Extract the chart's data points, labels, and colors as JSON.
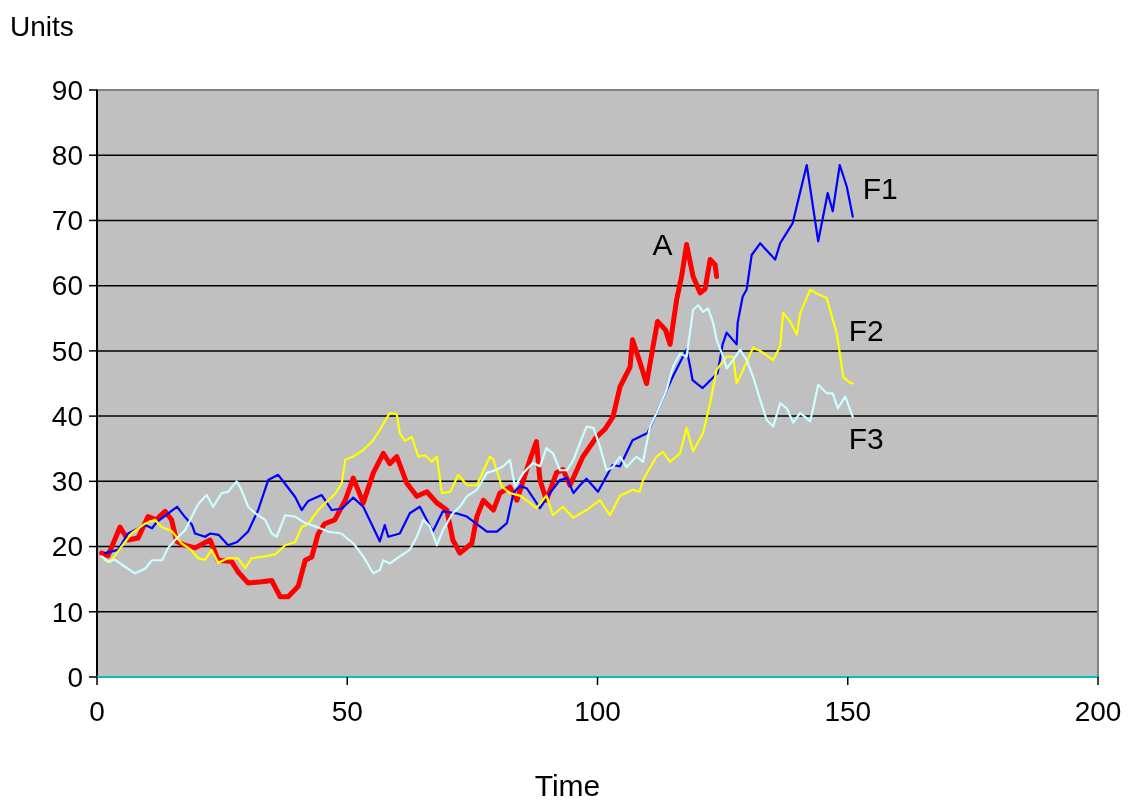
{
  "chart_data": {
    "type": "line",
    "xlabel": "Time",
    "ylabel": "Units",
    "xlim": [
      0,
      200
    ],
    "xticks": [
      0,
      50,
      100,
      150,
      200
    ],
    "ylim": [
      0,
      90
    ],
    "yticks": [
      0,
      10,
      20,
      30,
      40,
      50,
      60,
      70,
      80,
      90
    ],
    "grid": "y",
    "line_style": "solid",
    "marker": "none",
    "series": [
      {
        "name": "A",
        "color": "#ff0000",
        "x": [
          0.9,
          2.2,
          4.6,
          6.2,
          8.2,
          10.2,
          11.8,
          13.6,
          14.9,
          15.9,
          17.5,
          19.6,
          22.6,
          24.2,
          26.9,
          28.2,
          30.2,
          32.9,
          34.9,
          36.6,
          38.2,
          40.2,
          41.6,
          42.9,
          44.2,
          45.5,
          47.5,
          49.6,
          51.2,
          53.2,
          55.2,
          57.2,
          58.5,
          59.9,
          61.9,
          63.9,
          65.9,
          67.9,
          69.9,
          71.1,
          72.5,
          74.9,
          75.9,
          77.2,
          79.2,
          80.5,
          82.5,
          83.9,
          86.5,
          87.8,
          88.5,
          89.8,
          91.8,
          93.1,
          94.5,
          97.1,
          99.8,
          101.5,
          103.1,
          104.5,
          106.5,
          107,
          108.5,
          109.8,
          111.1,
          112,
          113.6,
          114.5,
          115.8,
          116.8,
          117.8,
          119.1,
          120.5,
          121.5,
          122.5,
          123.5,
          123.8
        ],
        "values": [
          19,
          18.6,
          23,
          21,
          21.3,
          24.6,
          24.1,
          25.4,
          24.1,
          20.8,
          20.2,
          19.8,
          21,
          17.9,
          17.7,
          16.1,
          14.4,
          14.6,
          14.8,
          12.3,
          12.3,
          13.9,
          17.9,
          18.4,
          22,
          23.5,
          24.1,
          27.1,
          30.5,
          26.7,
          31.3,
          34.3,
          32.7,
          33.8,
          29.7,
          27.7,
          28.4,
          26.7,
          25.6,
          21,
          19,
          20.5,
          24.6,
          27.1,
          25.6,
          28.2,
          29.1,
          27.1,
          33.3,
          36.1,
          30.2,
          27.1,
          31.3,
          31.8,
          29.4,
          33.8,
          36.8,
          38,
          39.9,
          44.5,
          47.5,
          51.7,
          48.2,
          45,
          50.7,
          54.5,
          53.2,
          51,
          57.8,
          61.4,
          66.3,
          61.4,
          58.9,
          59.5,
          64,
          63.2,
          61.4
        ]
      },
      {
        "name": "F1",
        "color": "#0000ff",
        "x": [
          1.6,
          4.2,
          6.2,
          9.6,
          11,
          12,
          16,
          17.5,
          19,
          19.6,
          21.6,
          22.6,
          24.3,
          26.2,
          28,
          30.2,
          32.2,
          34.2,
          36.2,
          37.8,
          39.6,
          40.9,
          42.2,
          44.9,
          46.9,
          48.9,
          51.2,
          53.2,
          56.5,
          57.5,
          58.2,
          60.5,
          62.5,
          64.5,
          67.1,
          69.1,
          71.8,
          73.9,
          76.5,
          77.9,
          79.9,
          81.9,
          83.2,
          84.5,
          85.9,
          88.5,
          90.5,
          92.5,
          93.9,
          95.2,
          96.5,
          97.8,
          100.1,
          103,
          104.5,
          107,
          110,
          111.5,
          115,
          117.8,
          118.5,
          119,
          121,
          124,
          125,
          125.8,
          127.8,
          128,
          129,
          129.8,
          130.8,
          132.5,
          135.5,
          136.5,
          139,
          141.8,
          144.1,
          146,
          147,
          148.4,
          149.8,
          151
        ],
        "values": [
          19,
          19.5,
          22,
          23.3,
          22.8,
          23.8,
          26.1,
          24.6,
          23.3,
          22,
          21.5,
          22,
          21.8,
          20.2,
          20.7,
          22.3,
          25.6,
          30.2,
          31,
          29.4,
          27.6,
          25.6,
          27,
          27.9,
          25.6,
          25.8,
          27.5,
          26.1,
          20.8,
          23.3,
          21.5,
          22,
          25.1,
          26.1,
          22.3,
          25.4,
          25.1,
          24.6,
          23.1,
          22.3,
          22.3,
          23.6,
          28.2,
          29.3,
          28.9,
          25.9,
          28.2,
          30.2,
          30.5,
          28.2,
          29.4,
          30.4,
          28.4,
          32.5,
          32.3,
          36.3,
          37.4,
          40,
          46,
          50.2,
          47.6,
          45.5,
          44.3,
          46.6,
          51,
          52.8,
          51,
          54.3,
          58.3,
          59.4,
          64.7,
          66.5,
          64,
          66.5,
          69.6,
          78.5,
          66.8,
          74.2,
          71.4,
          78.5,
          75.2,
          70.6
        ]
      },
      {
        "name": "F2",
        "color": "#ffff00",
        "x": [
          1.6,
          2.6,
          4.9,
          6.9,
          9.6,
          11.6,
          12.9,
          14.9,
          16.9,
          18.9,
          20.2,
          21.6,
          22.9,
          24.2,
          26.2,
          28.2,
          29.6,
          30.9,
          33.6,
          35.6,
          37.6,
          39.6,
          40.9,
          42.2,
          44.2,
          46.2,
          47.6,
          48.9,
          49.6,
          51.2,
          53.2,
          55.2,
          56.9,
          58.5,
          59.9,
          60.5,
          61.5,
          62.9,
          64.2,
          65.5,
          66.9,
          67.9,
          68.9,
          70.6,
          72.2,
          73.9,
          75.9,
          78.5,
          79.2,
          80.9,
          82.5,
          84.5,
          86.5,
          87.8,
          89.8,
          91.1,
          93.1,
          95.1,
          97.8,
          100.5,
          102.5,
          104.5,
          107,
          108.4,
          109.1,
          111.8,
          113.1,
          114.5,
          116.5,
          117.8,
          119.1,
          121.1,
          122.5,
          123.8,
          125.8,
          127.1,
          127.8,
          129.1,
          131.1,
          132.5,
          135.1,
          136.5,
          137.1,
          138.5,
          139.8,
          140.5,
          142.5,
          143.8,
          145.8,
          147,
          147.8,
          148.4,
          149.1,
          150.5,
          151
        ],
        "values": [
          17.9,
          17.6,
          20,
          22,
          23.5,
          24.1,
          23,
          22.4,
          20.5,
          19.4,
          18.2,
          18,
          19.5,
          17.5,
          18.2,
          18.2,
          16.7,
          18.2,
          18.5,
          18.8,
          20.2,
          20.7,
          23,
          23.5,
          25.6,
          27.1,
          28.1,
          29.7,
          33.3,
          33.8,
          34.8,
          36.3,
          38.4,
          40.5,
          40.3,
          37.4,
          36.2,
          36.8,
          33.8,
          34,
          33,
          33.8,
          28.2,
          28.4,
          31,
          29.4,
          29.4,
          33.8,
          33.3,
          29.2,
          28.2,
          27.8,
          26.7,
          25.9,
          27.8,
          24.8,
          26.1,
          24.4,
          25.6,
          27.1,
          24.8,
          27.8,
          28.7,
          28.4,
          30.2,
          33.8,
          34.5,
          33,
          34.3,
          38.2,
          34.6,
          37.4,
          42,
          47.1,
          49.1,
          49.1,
          45,
          47.1,
          50.5,
          50,
          48.6,
          50.7,
          55.8,
          54.5,
          52.5,
          55.8,
          59.4,
          58.8,
          58.1,
          54.8,
          52.7,
          49.7,
          46,
          45.1,
          45
        ]
      },
      {
        "name": "F3",
        "color": "#ccffff",
        "x": [
          0.9,
          2.2,
          3.5,
          5.6,
          7.6,
          9.6,
          11,
          13,
          14.2,
          15.6,
          17.6,
          19.6,
          20.3,
          21.9,
          23.2,
          24.9,
          26.2,
          27.9,
          28.8,
          30.2,
          31.6,
          33.6,
          34.9,
          35.9,
          37.6,
          39.6,
          41.6,
          43.6,
          46.1,
          48.8,
          51.2,
          53.2,
          55.2,
          56.5,
          57.2,
          58.5,
          60.5,
          62.5,
          63.9,
          65.2,
          66.5,
          67.9,
          69.1,
          71.1,
          72.5,
          73.9,
          75.9,
          77.9,
          79.9,
          81.2,
          82.5,
          83.5,
          85.2,
          87.1,
          88.5,
          89.8,
          91.1,
          92.5,
          93.9,
          95.2,
          96.5,
          97.8,
          99.2,
          100.5,
          101.8,
          103.1,
          104.5,
          105.8,
          107.8,
          109.1,
          110.5,
          111.8,
          113.8,
          115.1,
          116.5,
          117.8,
          119.1,
          120.1,
          121.1,
          122.1,
          123.1,
          123.8,
          125.1,
          125.8,
          127.1,
          128.5,
          129.8,
          131.1,
          132.5,
          133.8,
          135.1,
          136.5,
          137.8,
          139.1,
          140.5,
          142.5,
          143.2,
          144.1,
          145.8,
          147,
          148,
          149.5,
          150.5,
          151
        ],
        "values": [
          18.5,
          17.7,
          18,
          16.9,
          15.9,
          16.6,
          17.9,
          17.9,
          19.8,
          21,
          22.5,
          25.6,
          26.6,
          27.9,
          26.1,
          28.2,
          28.4,
          30,
          28.8,
          26.1,
          25.1,
          24.1,
          22,
          21.5,
          24.8,
          24.6,
          23.6,
          23.1,
          22.3,
          22,
          20.5,
          18.5,
          15.9,
          16.4,
          17.9,
          17.4,
          18.5,
          19.5,
          21.5,
          24.1,
          23.1,
          20.2,
          22.5,
          25.1,
          26.1,
          27.7,
          28.7,
          31.3,
          31.8,
          32.3,
          33.3,
          29.2,
          31.3,
          32.8,
          32.3,
          35.1,
          34.3,
          31.7,
          31.7,
          33.3,
          35.9,
          38.4,
          38.2,
          35.3,
          31.7,
          32.2,
          33.8,
          32.2,
          33.8,
          33,
          38.4,
          40.5,
          44,
          47.6,
          49.6,
          49.1,
          56.3,
          57,
          56,
          56.5,
          54.3,
          51.7,
          49.1,
          47.3,
          48.6,
          50.2,
          48.6,
          46,
          42.5,
          39.4,
          38.4,
          42,
          41.2,
          39,
          40.5,
          39.2,
          41.6,
          44.8,
          43.5,
          43.5,
          41.2,
          43,
          40.9,
          39.9
        ]
      }
    ]
  }
}
